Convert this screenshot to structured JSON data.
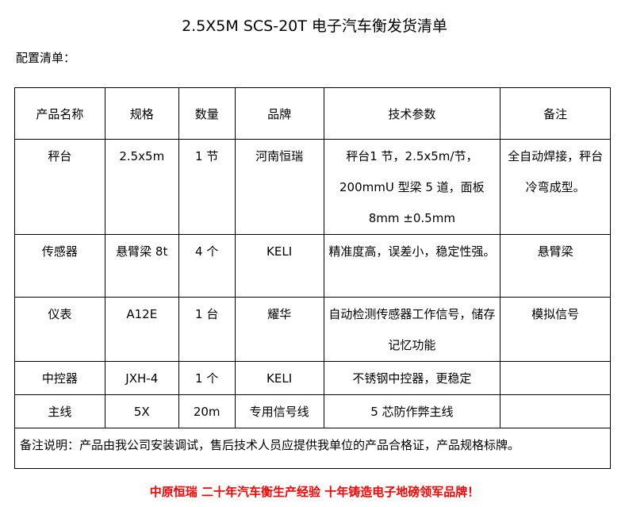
{
  "title": "2.5X5M SCS-20T 电子汽车衡发货清单",
  "subtitle": "配置清单：",
  "headers": [
    "产品名称",
    "规格",
    "数量",
    "品牌",
    "技术参数",
    "备注"
  ],
  "rows": [
    [
      "秤台",
      "2.5x5m",
      "1 节",
      "河南恒瑞",
      "秤台1 节，2.5x5m/节，200mmU 型梁 5 道，面板 8mm ±0.5mm",
      "全自动焊接，秤台冷弯成型。"
    ],
    [
      "传感器",
      "悬臂梁 8t",
      "4 个",
      "KELI",
      "精准度高，误差小，稳定性强。",
      "悬臂梁"
    ],
    [
      "仪表",
      "A12E",
      "1 台",
      "耀华",
      "自动检测传感器工作信号，储存记忆功能",
      "模拟信号"
    ],
    [
      "中控器",
      "JXH-4",
      "1 个",
      "KELI",
      "不锈钢中控器，更稳定",
      ""
    ],
    [
      "主线",
      "5X",
      "20m",
      "专用信号线",
      "5 芯防作弊主线",
      ""
    ]
  ],
  "note": "备注说明：产品由我公司安装调试，售后技术人员应提供我单位的产品合格证，产品规格标牌。",
  "slogan": "中原恒瑞 二十年汽车衡生产经验 十年铸造电子地磅领军品牌！",
  "colors": {
    "slogan": "#ff0000"
  }
}
